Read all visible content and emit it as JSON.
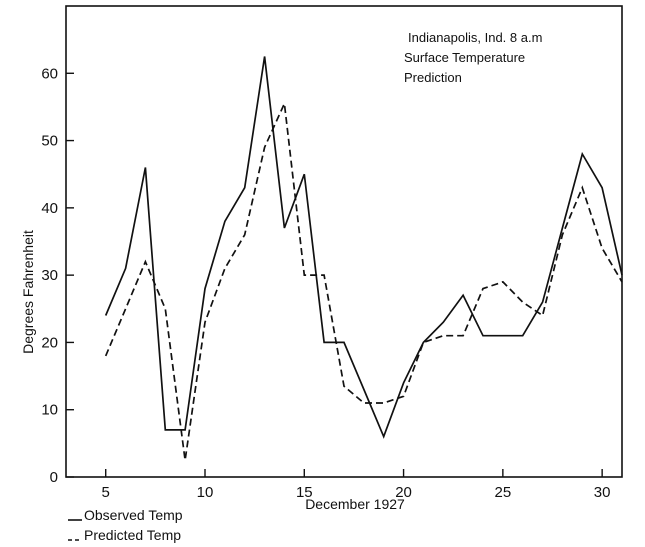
{
  "chart_data": {
    "type": "line",
    "annotation_lines": [
      "Indianapolis, Ind. 8 a.m",
      "Surface Temperature",
      "Prediction"
    ],
    "xlabel": "December 1927",
    "ylabel": "Degrees Fahrenheit",
    "xlim": [
      3,
      31
    ],
    "ylim": [
      0,
      70
    ],
    "x_ticks": [
      5,
      10,
      15,
      20,
      25,
      30
    ],
    "y_ticks": [
      0,
      10,
      20,
      30,
      40,
      50,
      60
    ],
    "grid": false,
    "legend_position": "bottom-left",
    "series": [
      {
        "name": "Observed Temp",
        "style": "solid",
        "color": "#111111",
        "x": [
          5,
          6,
          7,
          8,
          9,
          10,
          11,
          12,
          13,
          14,
          15,
          16,
          17,
          18,
          19,
          20,
          21,
          22,
          23,
          24,
          25,
          26,
          27,
          28,
          29,
          30,
          31
        ],
        "y": [
          24,
          31,
          46,
          7,
          7,
          28,
          38,
          43,
          62.5,
          37,
          45,
          20,
          20,
          13,
          6,
          14,
          20,
          23,
          27,
          21,
          21,
          21,
          26,
          37,
          48,
          43,
          30
        ]
      },
      {
        "name": "Predicted Temp",
        "style": "dashed",
        "color": "#111111",
        "x": [
          5,
          6,
          7,
          8,
          9,
          10,
          11,
          12,
          13,
          14,
          15,
          16,
          17,
          18,
          19,
          20,
          21,
          22,
          23,
          24,
          25,
          26,
          27,
          28,
          29,
          30,
          31
        ],
        "y": [
          18,
          25,
          32,
          25,
          2.5,
          23,
          31,
          36,
          49,
          55.5,
          30,
          30,
          13.5,
          11,
          11,
          12,
          20,
          21,
          21,
          28,
          29,
          26,
          24,
          36,
          43,
          34,
          29
        ]
      }
    ]
  }
}
